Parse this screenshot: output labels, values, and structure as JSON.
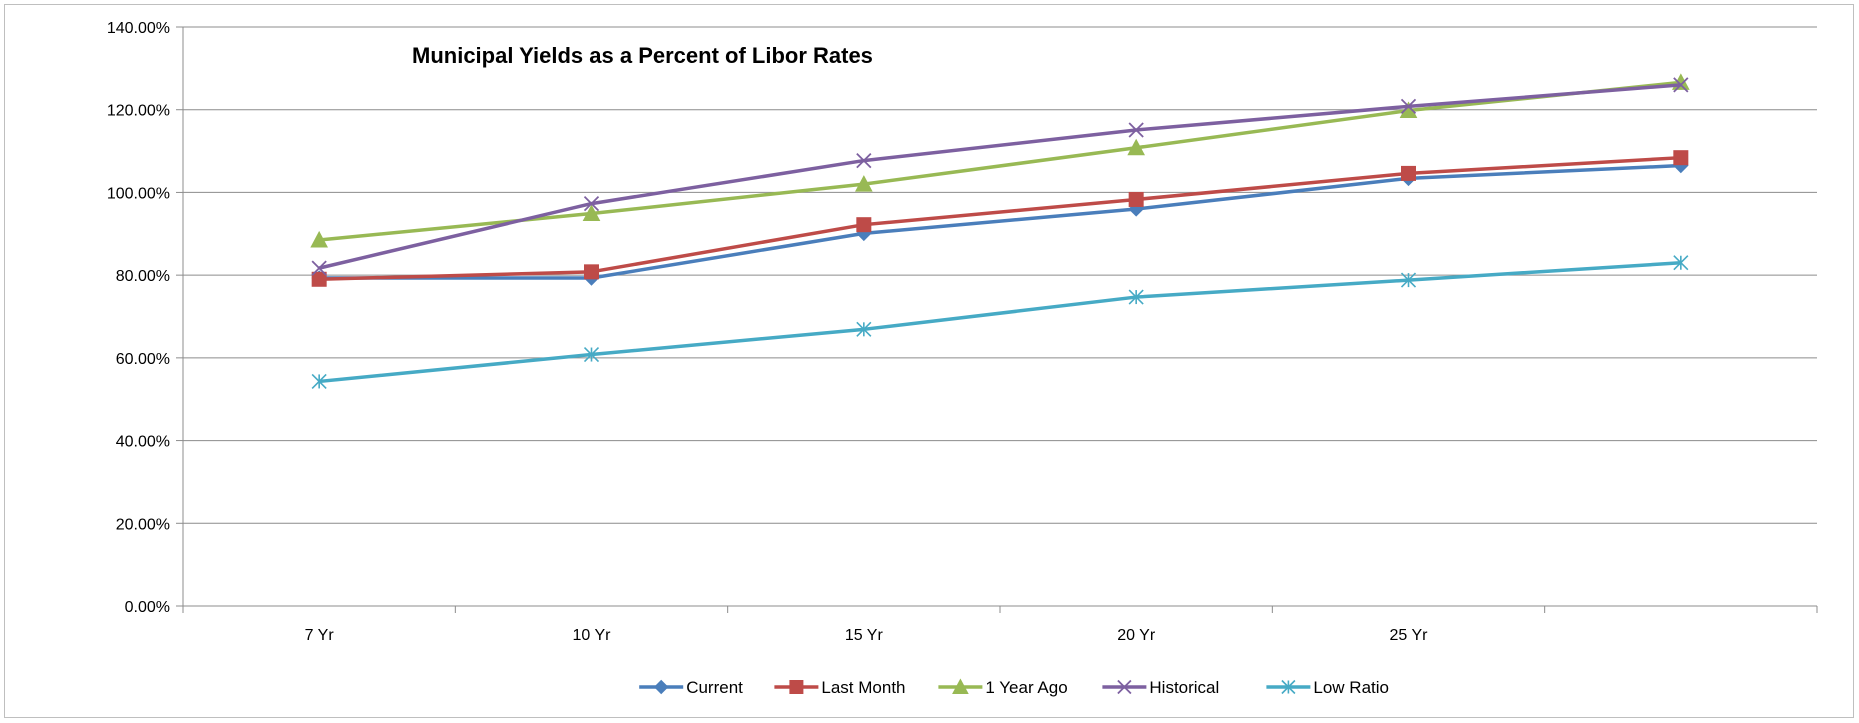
{
  "chart_data": {
    "type": "line",
    "title": "Municipal Yields as a Percent of Libor Rates",
    "categories": [
      "7 Yr",
      "10 Yr",
      "15 Yr",
      "20 Yr",
      "25 Yr",
      ""
    ],
    "ylim": [
      0,
      140
    ],
    "ytick_values": [
      0,
      20,
      40,
      60,
      80,
      100,
      120,
      140
    ],
    "ytick_labels": [
      "0.00%",
      "20.00%",
      "40.00%",
      "60.00%",
      "80.00%",
      "100.00%",
      "120.00%",
      "140.00%"
    ],
    "grid": true,
    "legend_position": "bottom",
    "series": [
      {
        "name": "Current",
        "color": "#4A7EBB",
        "marker": "diamond",
        "values": [
          79.3,
          79.3,
          90.1,
          96.0,
          103.4,
          106.5
        ]
      },
      {
        "name": "Last Month",
        "color": "#BE4B48",
        "marker": "square",
        "values": [
          79.0,
          80.8,
          92.2,
          98.3,
          104.6,
          108.4
        ]
      },
      {
        "name": "1 Year Ago",
        "color": "#98B954",
        "marker": "triangle",
        "values": [
          88.5,
          94.9,
          102.0,
          110.8,
          119.8,
          126.6
        ]
      },
      {
        "name": "Historical",
        "color": "#7D60A0",
        "marker": "x",
        "values": [
          81.7,
          97.3,
          107.7,
          115.1,
          120.8,
          126.0
        ]
      },
      {
        "name": "Low Ratio",
        "color": "#46AAC5",
        "marker": "star",
        "values": [
          54.3,
          60.8,
          66.9,
          74.7,
          78.8,
          83.0
        ]
      }
    ]
  }
}
